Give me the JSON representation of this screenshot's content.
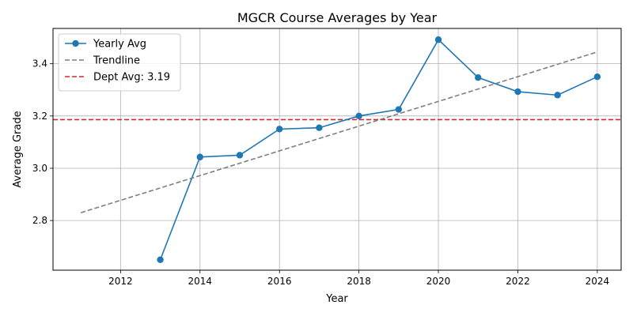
{
  "chart_data": {
    "type": "line",
    "title": "MGCR Course Averages by Year",
    "xlabel": "Year",
    "ylabel": "Average Grade",
    "xlim": [
      2010.3,
      2024.6
    ],
    "ylim": [
      2.61,
      3.535
    ],
    "x_ticks": [
      2012,
      2014,
      2016,
      2018,
      2020,
      2022,
      2024
    ],
    "y_ticks": [
      2.8,
      3.0,
      3.2,
      3.4
    ],
    "x_tick_labels": [
      "2012",
      "2014",
      "2016",
      "2018",
      "2020",
      "2022",
      "2024"
    ],
    "y_tick_labels": [
      "2.8",
      "3.0",
      "3.2",
      "3.4"
    ],
    "grid": true,
    "legend_position": "top-left",
    "series": [
      {
        "name": "Yearly Avg",
        "style": "solid-with-markers",
        "color": "#1f77b4",
        "x": [
          2013,
          2014,
          2015,
          2016,
          2017,
          2018,
          2019,
          2020,
          2021,
          2022,
          2023,
          2024
        ],
        "y": [
          2.65,
          3.043,
          3.05,
          3.15,
          3.155,
          3.2,
          3.225,
          3.492,
          3.347,
          3.293,
          3.28,
          3.35
        ]
      },
      {
        "name": "Trendline",
        "style": "dashed",
        "color": "#7f7f7f",
        "x": [
          2011,
          2024
        ],
        "y": [
          2.83,
          3.445
        ]
      }
    ],
    "reference_lines": [
      {
        "name": "Dept Avg: 3.19",
        "orientation": "horizontal",
        "value": 3.186,
        "style": "dashed",
        "color": "#d62728"
      }
    ]
  }
}
